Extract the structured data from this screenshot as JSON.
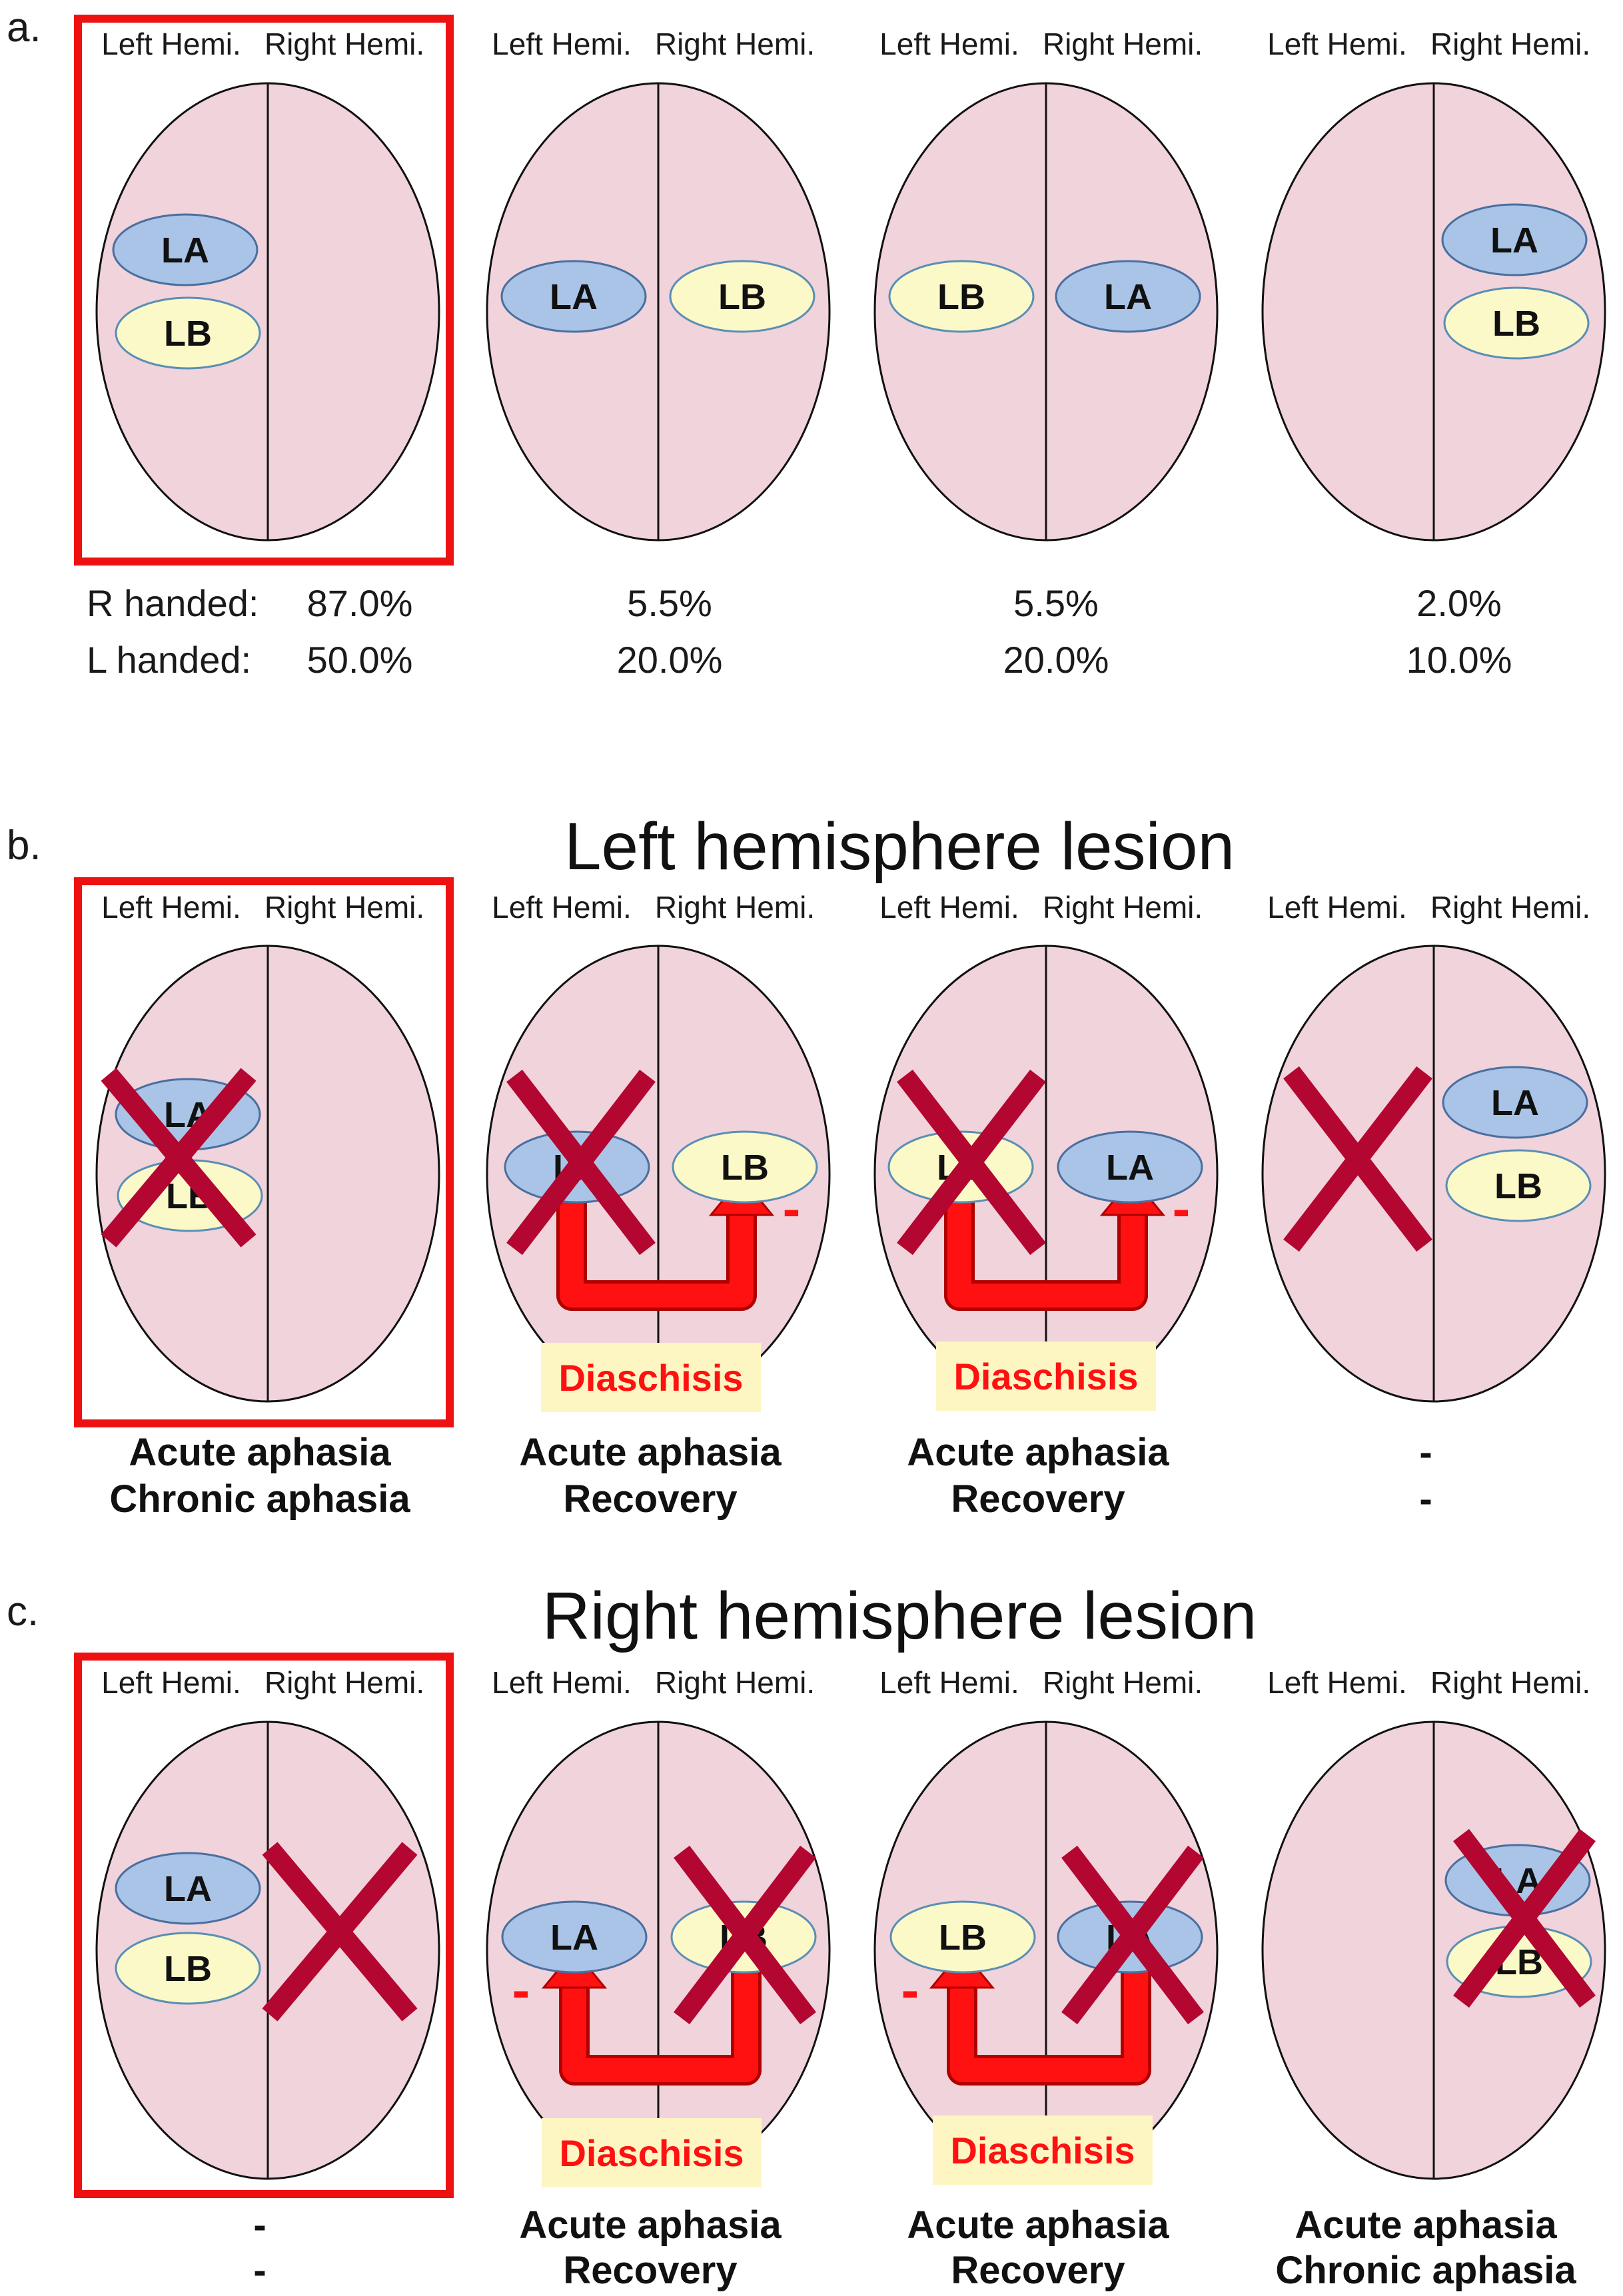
{
  "colors": {
    "brain_fill": "#f1d3db",
    "la_fill": "#a9c4e6",
    "lb_fill": "#fcf9c9",
    "lesion_x": "#b30631",
    "highlight_frame": "#ee1111",
    "diaschisis_arrow": "#ff1111",
    "diaschisis_label_bg": "#fdf6c2",
    "diaschisis_text": "#ff1111"
  },
  "icons": {
    "lesion": "x-mark-icon",
    "diaschisis": "u-turn-arrow-icon"
  },
  "labels": {
    "left_hemi": "Left Hemi.",
    "right_hemi": "Right Hemi.",
    "la": "LA",
    "lb": "LB",
    "diaschisis": "Diaschisis",
    "minus": "-"
  },
  "panels": {
    "a": {
      "letter": "a.",
      "row_r_label": "R handed:",
      "row_l_label": "L handed:",
      "r_handed": [
        "87.0%",
        "5.5%",
        "5.5%",
        "2.0%"
      ],
      "l_handed": [
        "50.0%",
        "20.0%",
        "20.0%",
        "10.0%"
      ]
    },
    "b": {
      "letter": "b.",
      "title": "Left hemisphere lesion",
      "captions": [
        [
          "Acute aphasia",
          "Chronic aphasia"
        ],
        [
          "Acute aphasia",
          "Recovery"
        ],
        [
          "Acute aphasia",
          "Recovery"
        ],
        [
          "-",
          "-"
        ]
      ]
    },
    "c": {
      "letter": "c.",
      "title": "Right hemisphere lesion",
      "captions": [
        [
          "-",
          "-"
        ],
        [
          "Acute aphasia",
          "Recovery"
        ],
        [
          "Acute aphasia",
          "Recovery"
        ],
        [
          "Acute aphasia",
          "Chronic aphasia"
        ]
      ]
    }
  }
}
